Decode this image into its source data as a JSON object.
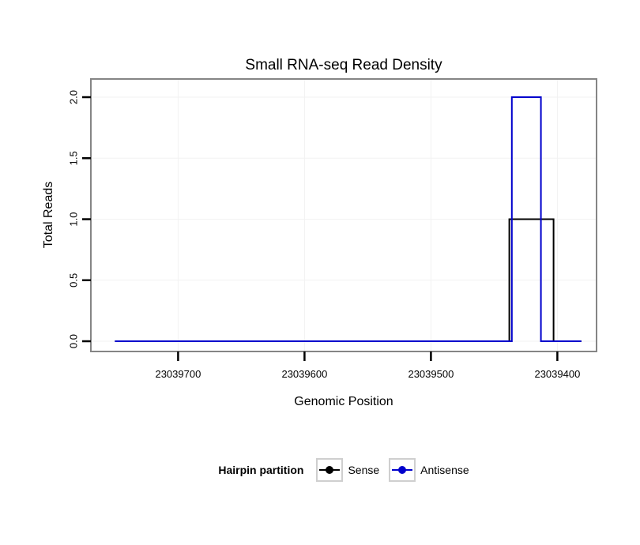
{
  "chart": {
    "title": "Small RNA-seq Read Density",
    "xlabel": "Genomic Position",
    "ylabel": "Total Reads"
  },
  "legend": {
    "title": "Hairpin partition",
    "entries": [
      {
        "label": "Sense",
        "color": "#000000"
      },
      {
        "label": "Antisense",
        "color": "#0000cc"
      }
    ]
  },
  "chart_data": {
    "type": "line",
    "title": "Small RNA-seq Read Density",
    "xlabel": "Genomic Position",
    "ylabel": "Total Reads",
    "grid": "faint major gridlines",
    "legend_position": "bottom",
    "x_axis": {
      "reversed": true,
      "left_value": 23039769,
      "right_value": 23039369,
      "ticks": [
        {
          "value": 23039700,
          "label": "23039700"
        },
        {
          "value": 23039600,
          "label": "23039600"
        },
        {
          "value": 23039500,
          "label": "23039500"
        },
        {
          "value": 23039400,
          "label": "23039400"
        }
      ]
    },
    "y_axis": {
      "min": -0.084,
      "max": 2.149,
      "ticks": [
        {
          "value": 0.0,
          "label": "0.0"
        },
        {
          "value": 0.5,
          "label": "0.5"
        },
        {
          "value": 1.0,
          "label": "1.0"
        },
        {
          "value": 1.5,
          "label": "1.5"
        },
        {
          "value": 2.0,
          "label": "2.0"
        }
      ]
    },
    "series": [
      {
        "name": "Sense",
        "color": "#000000",
        "points": [
          [
            23039750,
            0
          ],
          [
            23039438,
            0
          ],
          [
            23039438,
            1
          ],
          [
            23039403,
            1
          ],
          [
            23039403,
            0
          ],
          [
            23039381,
            0
          ]
        ]
      },
      {
        "name": "Antisense",
        "color": "#0000cc",
        "points": [
          [
            23039750,
            0
          ],
          [
            23039436,
            0
          ],
          [
            23039436,
            2
          ],
          [
            23039413,
            2
          ],
          [
            23039413,
            0
          ],
          [
            23039381,
            0
          ]
        ]
      }
    ]
  },
  "style": {
    "plot_border_color": "#858585",
    "grid_color": "#f2f2f2",
    "tick_color": "#000000",
    "legend_key_border": "#cfcfcf"
  }
}
